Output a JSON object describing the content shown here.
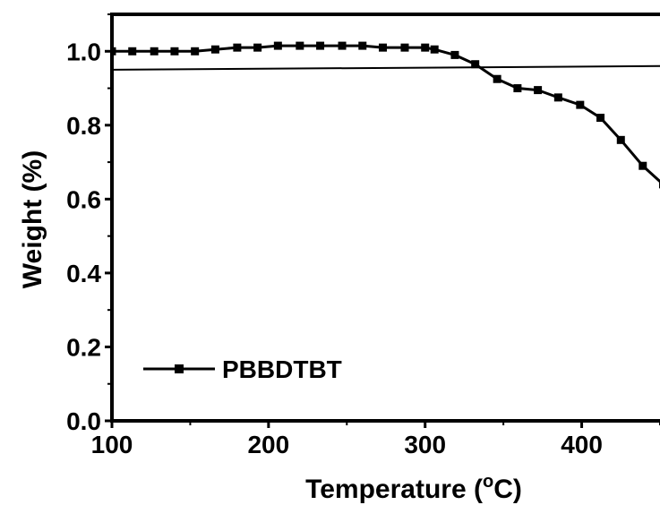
{
  "chart_data": {
    "type": "line",
    "title": "",
    "xlabel": "Temperature (",
    "xlabel_sup": "o",
    "xlabel_end": "C)",
    "ylabel": "Weight (%)",
    "xlim": [
      100,
      450
    ],
    "ylim": [
      0.0,
      1.1
    ],
    "x_ticks": [
      "100",
      "200",
      "300",
      "400"
    ],
    "y_ticks": [
      "0.0",
      "0.2",
      "0.4",
      "0.6",
      "0.8",
      "1.0"
    ],
    "grid": false,
    "legend_position": "bottom-left",
    "series": [
      {
        "name": "PBBDTBT",
        "color": "#000000",
        "marker": "square",
        "x": [
          100,
          113,
          127,
          140,
          153,
          166,
          180,
          193,
          206,
          220,
          233,
          247,
          260,
          273,
          287,
          300,
          306,
          319,
          332,
          346,
          359,
          372,
          385,
          399,
          412,
          425,
          439,
          452
        ],
        "y": [
          1.0,
          1.0,
          1.0,
          1.0,
          1.0,
          1.005,
          1.01,
          1.01,
          1.015,
          1.015,
          1.015,
          1.015,
          1.015,
          1.01,
          1.01,
          1.01,
          1.005,
          0.99,
          0.965,
          0.925,
          0.9,
          0.895,
          0.875,
          0.855,
          0.82,
          0.76,
          0.69,
          0.64
        ]
      }
    ],
    "reference_lines": [
      {
        "x": [
          100,
          452
        ],
        "y": [
          0.95,
          0.96
        ]
      }
    ]
  }
}
